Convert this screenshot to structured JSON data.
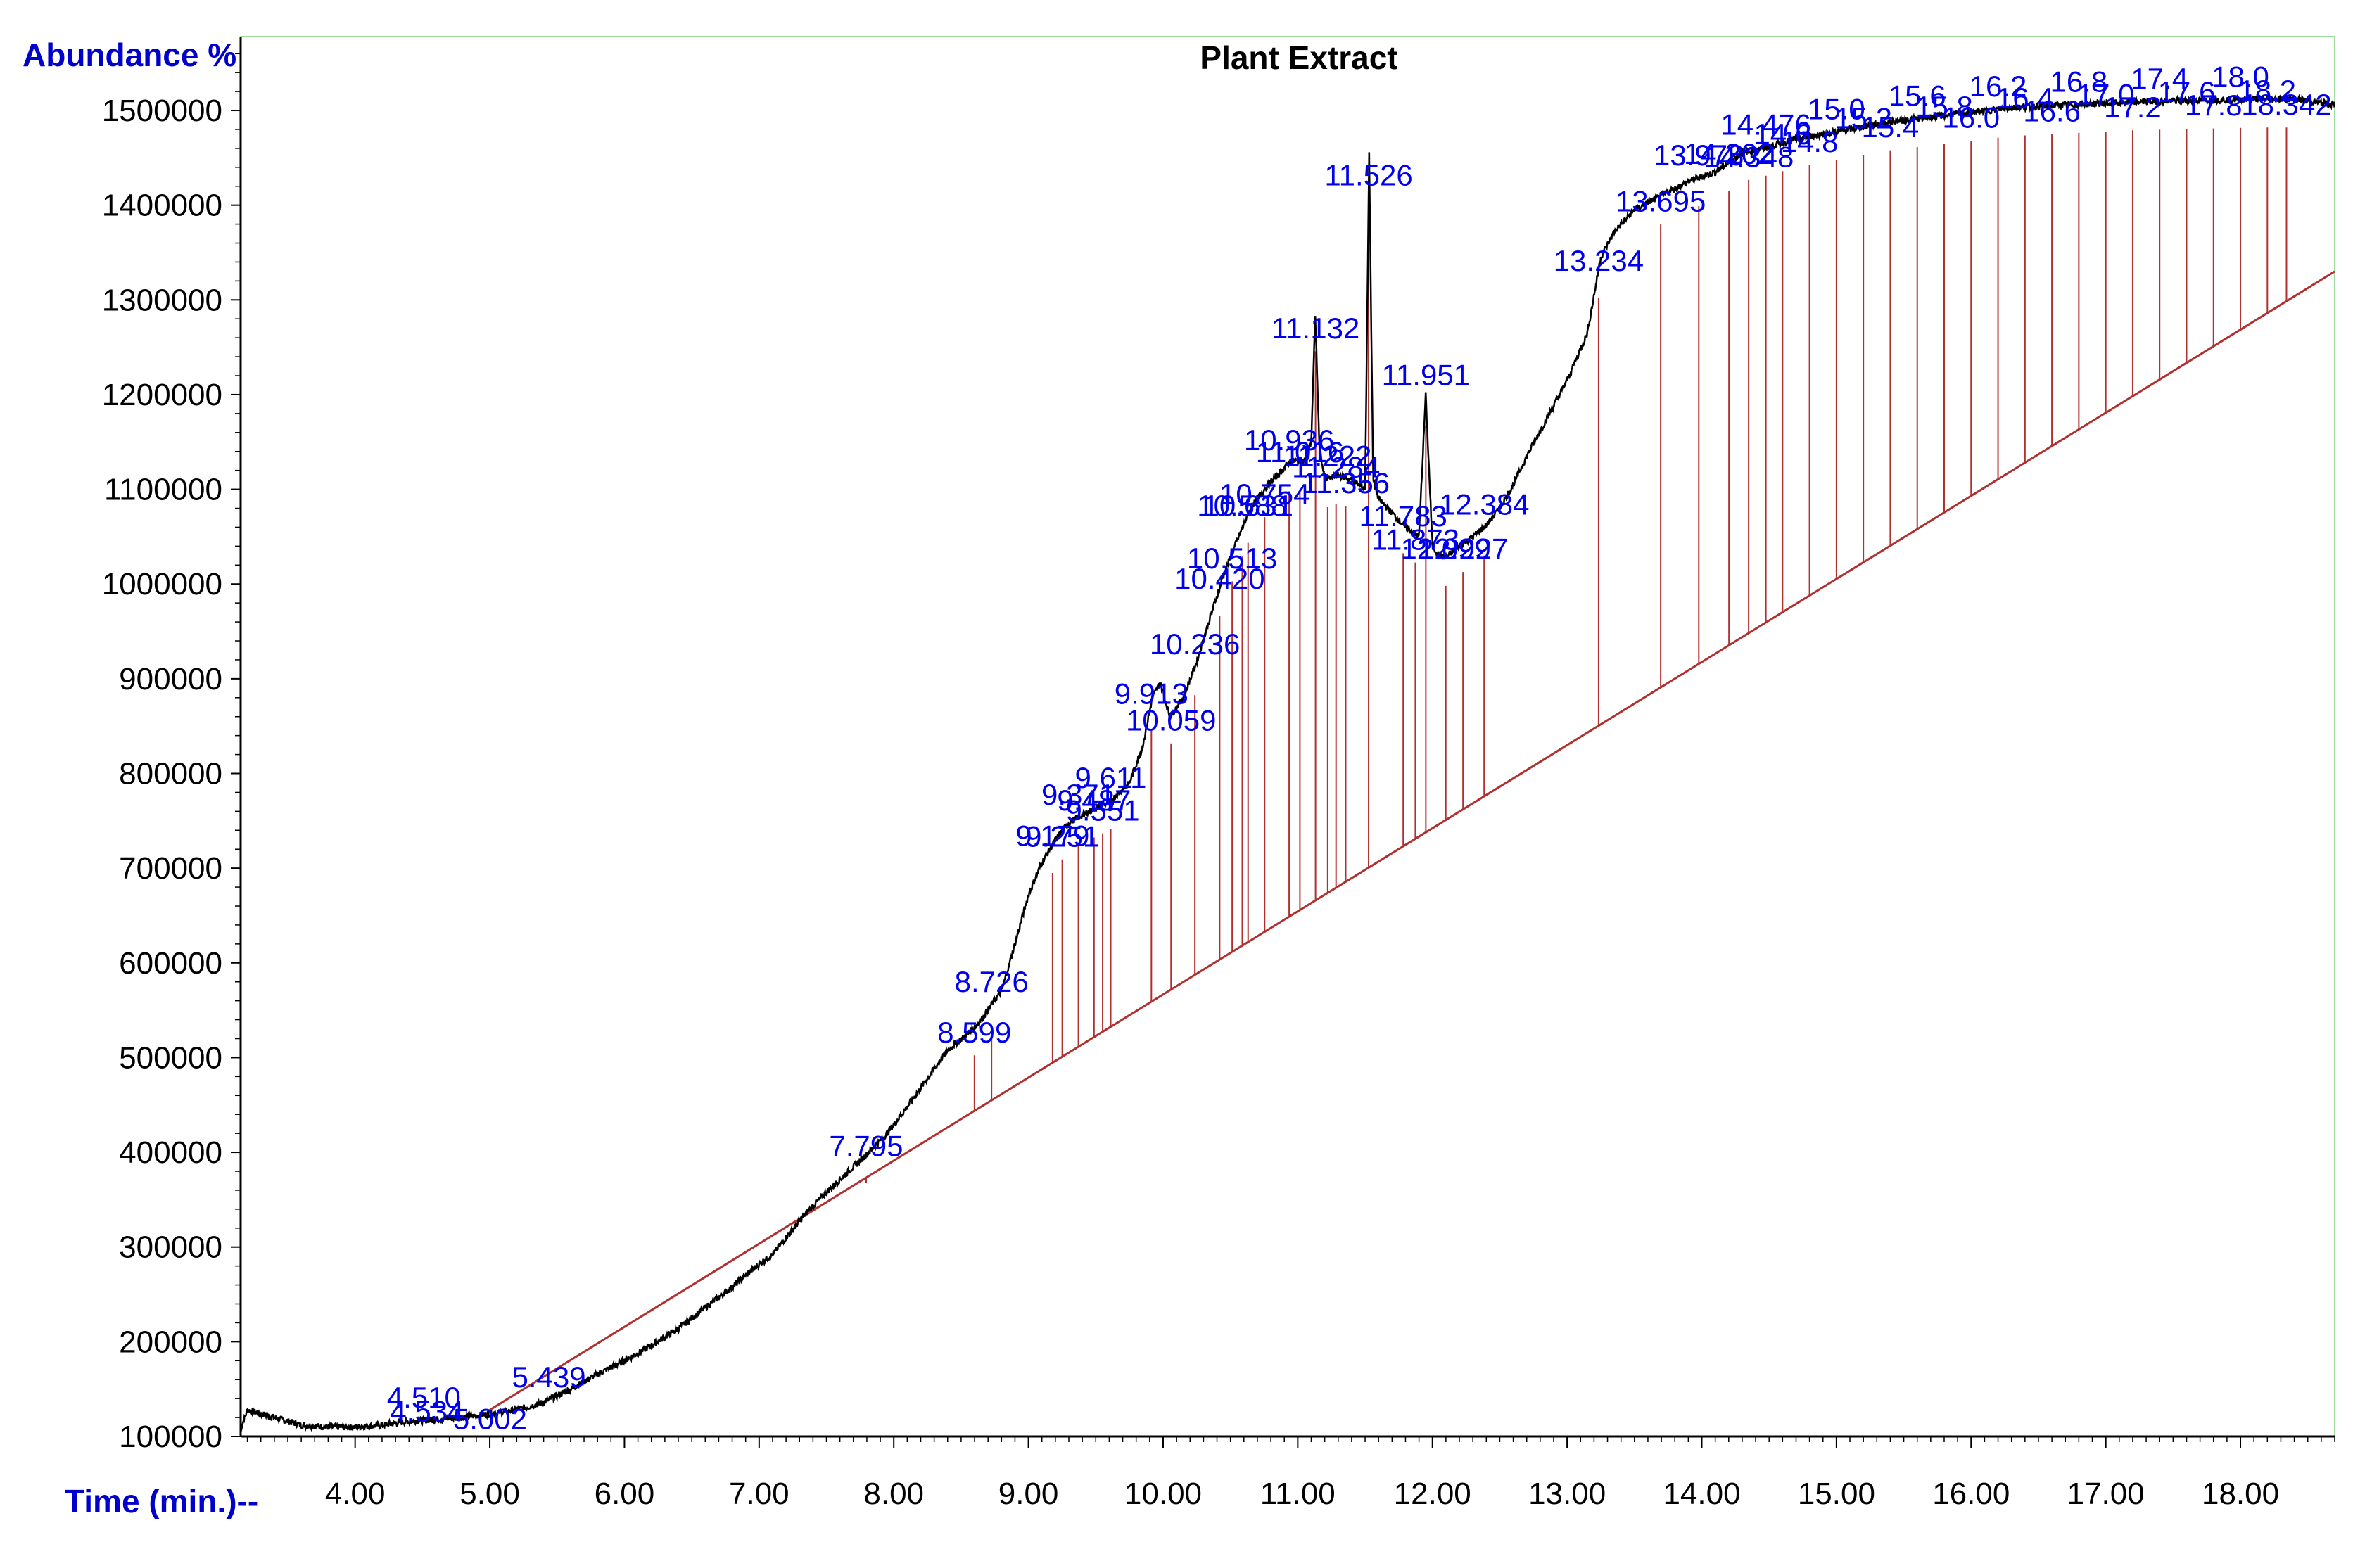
{
  "chart_data": {
    "type": "line",
    "title": "Plant Extract",
    "ylabel": "Abundance %",
    "xlabel": "Time (min.)--",
    "xlim": [
      3.15,
      18.7
    ],
    "ylim": [
      100000,
      1578000
    ],
    "x_ticks": [
      4,
      5,
      6,
      7,
      8,
      9,
      10,
      11,
      12,
      13,
      14,
      15,
      16,
      17,
      18
    ],
    "x_tick_labels": [
      "4.00",
      "5.00",
      "6.00",
      "7.00",
      "8.00",
      "9.00",
      "10.00",
      "11.00",
      "12.00",
      "13.00",
      "14.00",
      "15.00",
      "16.00",
      "17.00",
      "18.00"
    ],
    "y_ticks": [
      100000,
      200000,
      300000,
      400000,
      500000,
      600000,
      700000,
      800000,
      900000,
      1000000,
      1100000,
      1200000,
      1300000,
      1400000,
      1500000
    ],
    "y_tick_labels": [
      "100000",
      "200000",
      "300000",
      "400000",
      "500000",
      "600000",
      "700000",
      "800000",
      "900000",
      "1000000",
      "1100000",
      "1200000",
      "1300000",
      "1400000",
      "1500000"
    ],
    "grid": false,
    "colors": {
      "trace": "#000000",
      "baseline": "#b03030",
      "peak_label": "#0000ee",
      "axis_title": "#0000cc",
      "frame": "#9edc9e"
    },
    "series": [
      {
        "x": [
          3.15,
          3.2,
          3.3,
          3.45,
          3.6,
          3.8,
          4.0,
          4.2,
          4.4,
          4.6,
          4.8,
          5.0,
          5.2,
          5.4,
          5.6,
          5.8,
          6.0,
          6.2,
          6.4,
          6.6,
          6.8,
          7.0,
          7.1,
          7.2,
          7.35,
          7.5,
          7.65,
          7.8,
          7.95,
          8.1,
          8.25,
          8.4,
          8.55,
          8.65,
          8.72,
          8.8,
          8.9,
          9.0,
          9.1,
          9.2,
          9.3,
          9.45,
          9.6,
          9.75,
          9.85,
          9.92,
          9.98,
          10.05,
          10.15,
          10.25,
          10.35,
          10.45,
          10.55,
          10.65,
          10.75,
          10.85,
          10.95,
          11.05,
          11.1,
          11.13,
          11.16,
          11.2,
          11.3,
          11.4,
          11.5,
          11.53,
          11.56,
          11.6,
          11.7,
          11.8,
          11.9,
          11.95,
          12.0,
          12.05,
          12.1,
          12.2,
          12.3,
          12.4,
          12.5,
          12.6,
          12.7,
          12.85,
          13.0,
          13.15,
          13.25,
          13.35,
          13.5,
          13.7,
          13.9,
          14.1,
          14.2,
          14.3,
          14.5,
          14.7,
          14.9,
          15.1,
          15.4,
          15.7,
          16.0,
          16.3,
          16.6,
          16.9,
          17.2,
          17.5,
          17.8,
          18.1,
          18.4,
          18.7
        ],
        "y": [
          108000,
          128000,
          124000,
          118000,
          112000,
          110000,
          110000,
          112000,
          116000,
          118000,
          120000,
          124000,
          128000,
          136000,
          150000,
          166000,
          180000,
          196000,
          214000,
          236000,
          258000,
          282000,
          292000,
          310000,
          336000,
          358000,
          378000,
          398000,
          420000,
          448000,
          478000,
          508000,
          525000,
          540000,
          555000,
          570000,
          620000,
          672000,
          706000,
          730000,
          748000,
          760000,
          770000,
          790000,
          830000,
          880000,
          896000,
          860000,
          880000,
          918000,
          965000,
          1010000,
          1046000,
          1080000,
          1100000,
          1115000,
          1130000,
          1130000,
          1150000,
          1285000,
          1145000,
          1110000,
          1115000,
          1110000,
          1100000,
          1455000,
          1110000,
          1090000,
          1075000,
          1060000,
          1050000,
          1200000,
          1040000,
          1030000,
          1028000,
          1040000,
          1050000,
          1062000,
          1080000,
          1105000,
          1135000,
          1175000,
          1215000,
          1265000,
          1345000,
          1372000,
          1395000,
          1410000,
          1425000,
          1435000,
          1445000,
          1455000,
          1462000,
          1470000,
          1475000,
          1480000,
          1488000,
          1493000,
          1498000,
          1503000,
          1505000,
          1507000,
          1509000,
          1510000,
          1511000,
          1512000,
          1512000,
          1506000
        ]
      }
    ],
    "baseline": {
      "x": [
        5.0,
        18.7
      ],
      "y": [
        128000,
        1330000
      ]
    },
    "peaks": [
      {
        "label": "4.510",
        "rt": 4.51
      },
      {
        "label": "4.534",
        "rt": 4.534
      },
      {
        "label": "5.002",
        "rt": 5.002
      },
      {
        "label": "5.439",
        "rt": 5.439
      },
      {
        "label": "7.795",
        "rt": 7.795
      },
      {
        "label": "8.599",
        "rt": 8.599
      },
      {
        "label": "8.726",
        "rt": 8.726
      },
      {
        "label": "9.179",
        "rt": 9.179
      },
      {
        "label": "9.251",
        "rt": 9.251
      },
      {
        "label": "9.371",
        "rt": 9.371
      },
      {
        "label": "9.487",
        "rt": 9.487
      },
      {
        "label": "9.551",
        "rt": 9.551
      },
      {
        "label": "9.611",
        "rt": 9.611
      },
      {
        "label": "9.913",
        "rt": 9.913
      },
      {
        "label": "10.059",
        "rt": 10.059
      },
      {
        "label": "10.236",
        "rt": 10.236
      },
      {
        "label": "10.420",
        "rt": 10.42
      },
      {
        "label": "10.513",
        "rt": 10.513
      },
      {
        "label": "10.588",
        "rt": 10.588
      },
      {
        "label": "10.631",
        "rt": 10.631
      },
      {
        "label": "10.754",
        "rt": 10.754
      },
      {
        "label": "10.936",
        "rt": 10.936
      },
      {
        "label": "11.016",
        "rt": 11.016
      },
      {
        "label": "11.132",
        "rt": 11.132
      },
      {
        "label": "11.222",
        "rt": 11.222
      },
      {
        "label": "11.284",
        "rt": 11.284
      },
      {
        "label": "11.356",
        "rt": 11.356
      },
      {
        "label": "11.526",
        "rt": 11.526
      },
      {
        "label": "11.783",
        "rt": 11.783
      },
      {
        "label": "11.873",
        "rt": 11.873
      },
      {
        "label": "11.951",
        "rt": 11.951
      },
      {
        "label": "12.099",
        "rt": 12.099
      },
      {
        "label": "12.227",
        "rt": 12.227
      },
      {
        "label": "12.384",
        "rt": 12.384
      },
      {
        "label": "13.234",
        "rt": 13.234
      },
      {
        "label": "13.695",
        "rt": 13.695
      },
      {
        "label": "13.978",
        "rt": 13.978
      },
      {
        "label": "14.202",
        "rt": 14.202
      },
      {
        "label": "14.348",
        "rt": 14.348
      },
      {
        "label": "14.476",
        "rt": 14.476
      },
      {
        "label": "14.6",
        "rt": 14.6
      },
      {
        "label": "14.8",
        "rt": 14.8
      },
      {
        "label": "15.0",
        "rt": 15.0
      },
      {
        "label": "15.2",
        "rt": 15.2
      },
      {
        "label": "15.4",
        "rt": 15.4
      },
      {
        "label": "15.6",
        "rt": 15.6
      },
      {
        "label": "15.8",
        "rt": 15.8
      },
      {
        "label": "16.0",
        "rt": 16.0
      },
      {
        "label": "16.2",
        "rt": 16.2
      },
      {
        "label": "16.4",
        "rt": 16.4
      },
      {
        "label": "16.6",
        "rt": 16.6
      },
      {
        "label": "16.8",
        "rt": 16.8
      },
      {
        "label": "17.0",
        "rt": 17.0
      },
      {
        "label": "17.2",
        "rt": 17.2
      },
      {
        "label": "17.4",
        "rt": 17.4
      },
      {
        "label": "17.6",
        "rt": 17.6
      },
      {
        "label": "17.8",
        "rt": 17.8
      },
      {
        "label": "18.0",
        "rt": 18.0
      },
      {
        "label": "18.2",
        "rt": 18.2
      },
      {
        "label": "18.342",
        "rt": 18.342
      }
    ]
  }
}
